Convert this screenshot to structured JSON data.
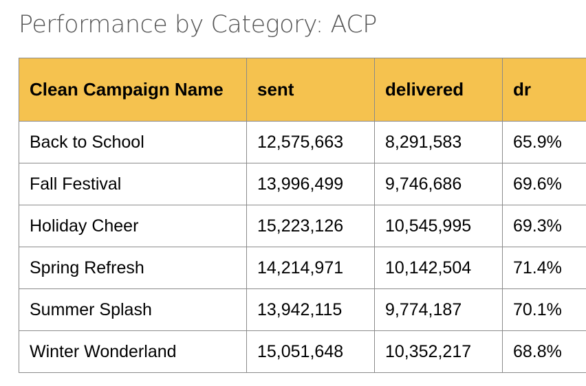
{
  "title": "Performance by Category: ACP",
  "chart_data": {
    "type": "table",
    "title": "Performance by Category: ACP",
    "columns": [
      "Clean Campaign Name",
      "sent",
      "delivered",
      "dr"
    ],
    "rows": [
      [
        "Back to School",
        "12,575,663",
        "8,291,583",
        "65.9%"
      ],
      [
        "Fall Festival",
        "13,996,499",
        "9,746,686",
        "69.6%"
      ],
      [
        "Holiday Cheer",
        "15,223,126",
        "10,545,995",
        "69.3%"
      ],
      [
        "Spring Refresh",
        "14,214,971",
        "10,142,504",
        "71.4%"
      ],
      [
        "Summer Splash",
        "13,942,115",
        "9,774,187",
        "70.1%"
      ],
      [
        "Winter Wonderland",
        "15,051,648",
        "10,352,217",
        "68.8%"
      ]
    ]
  },
  "colors": {
    "header_bg": "#f5c24f",
    "border": "#8a8a8a",
    "title_text": "#555555"
  }
}
